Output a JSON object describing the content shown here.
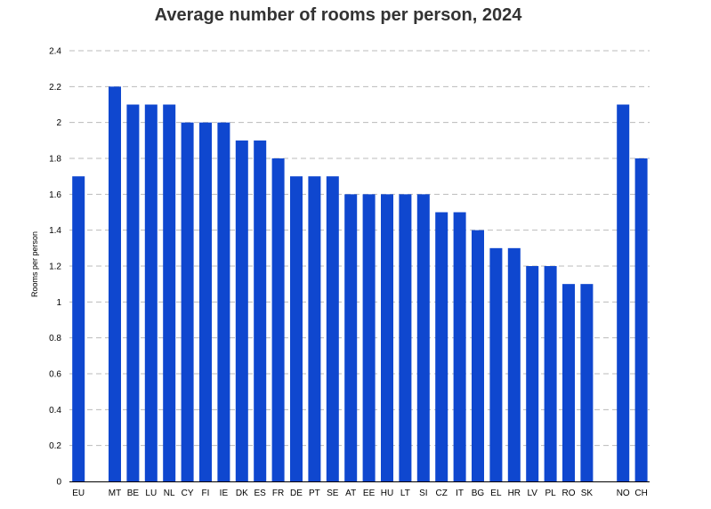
{
  "colors": {
    "bar": "#0F47CF",
    "grid": "#BBBBBB",
    "axis": "#000000",
    "title": "#333333",
    "text": "#000000"
  },
  "chart_data": {
    "type": "bar",
    "title": "Average number of rooms per person, 2024",
    "xlabel": "",
    "ylabel": "Rooms per person",
    "ylim": [
      0,
      2.4
    ],
    "yticks": [
      "0",
      "0.2",
      "0.4",
      "0.6",
      "0.8",
      "1",
      "1.2",
      "1.4",
      "1.6",
      "1.8",
      "2",
      "2.2",
      "2.4"
    ],
    "grid": true,
    "categories": [
      "EU",
      "",
      "MT",
      "BE",
      "LU",
      "NL",
      "CY",
      "FI",
      "IE",
      "DK",
      "ES",
      "FR",
      "DE",
      "PT",
      "SE",
      "AT",
      "EE",
      "HU",
      "LT",
      "SI",
      "CZ",
      "IT",
      "BG",
      "EL",
      "HR",
      "LV",
      "PL",
      "RO",
      "SK",
      "",
      "NO",
      "CH"
    ],
    "values": [
      1.7,
      null,
      2.2,
      2.1,
      2.1,
      2.1,
      2.0,
      2.0,
      2.0,
      1.9,
      1.9,
      1.8,
      1.7,
      1.7,
      1.7,
      1.6,
      1.6,
      1.6,
      1.6,
      1.6,
      1.5,
      1.5,
      1.4,
      1.3,
      1.3,
      1.2,
      1.2,
      1.1,
      1.1,
      null,
      2.1,
      1.8
    ]
  }
}
